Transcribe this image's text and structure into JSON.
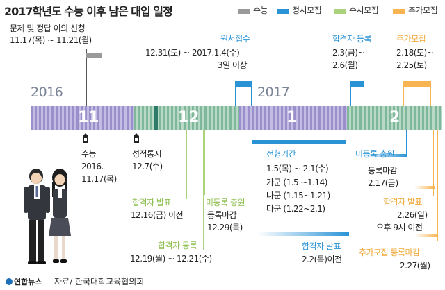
{
  "title": "2017학년도 수능 이후 남은 대입 일정",
  "legend": [
    {
      "label": "수능",
      "color": "#9a9a9a"
    },
    {
      "label": "정시모집",
      "color": "#2a93d5"
    },
    {
      "label": "수시모집",
      "color": "#a9d27a"
    },
    {
      "label": "추가모집",
      "color": "#f7b450"
    }
  ],
  "years": {
    "y2016": "2016",
    "y2017": "2017"
  },
  "months": {
    "m11": "11",
    "m12": "12",
    "m1": "1",
    "m2": "2"
  },
  "events": {
    "appeal_title": "문제 및 정답 이의 신청",
    "appeal_date": "11.17(목) ~ 11.21(월)",
    "apply_title": "원서접수",
    "apply_date": "12.31(토) ~ 2017.1.4(수)",
    "apply_note": "3일 이상",
    "reg_title": "합격자 등록",
    "reg_date1": "2.3(금)~",
    "reg_date2": "2.6(월)",
    "add_title": "추가모집",
    "add_date1": "2.18(토)~",
    "add_date2": "2.25(토)",
    "exam_title": "수능",
    "exam_date1": "2016.",
    "exam_date2": "11.17(목)",
    "score_title": "성적통지",
    "score_date": "12.7(수)",
    "period_title": "전형기간",
    "period_all": "1.5(목) ~ 2.1(수)",
    "period_ga": "가군 (1.5 ~1.14)",
    "period_na": "나군 (1.15~1.21)",
    "period_da": "다군 (1.22~2.1)",
    "vacancy_title": "미등록 충원",
    "vacancy_deadline_label": "등록마감",
    "vacancy_deadline_date": "2.17(금)",
    "susi_result_title": "합격자 발표",
    "susi_result_date": "12.16(금) 이전",
    "susi_vacancy_title": "미등록 충원",
    "susi_vacancy_label": "등록마감",
    "susi_vacancy_date": "12.29(목)",
    "susi_reg_title": "합격자 등록",
    "susi_reg_date": "12.19(월) ~ 12.21(수)",
    "jeongsi_result_title": "합격자 발표",
    "jeongsi_result_date": "2.2(목)이전",
    "add_result_title": "합격자 발표",
    "add_result_date1": "2.26(일)",
    "add_result_date2": "오후 9시 이전",
    "add_reg_title": "추가모집 등록마감",
    "add_reg_date": "2.27(월)"
  },
  "footer": {
    "logo": "연합뉴스",
    "source": "자료/ 한국대학교육협의회"
  }
}
